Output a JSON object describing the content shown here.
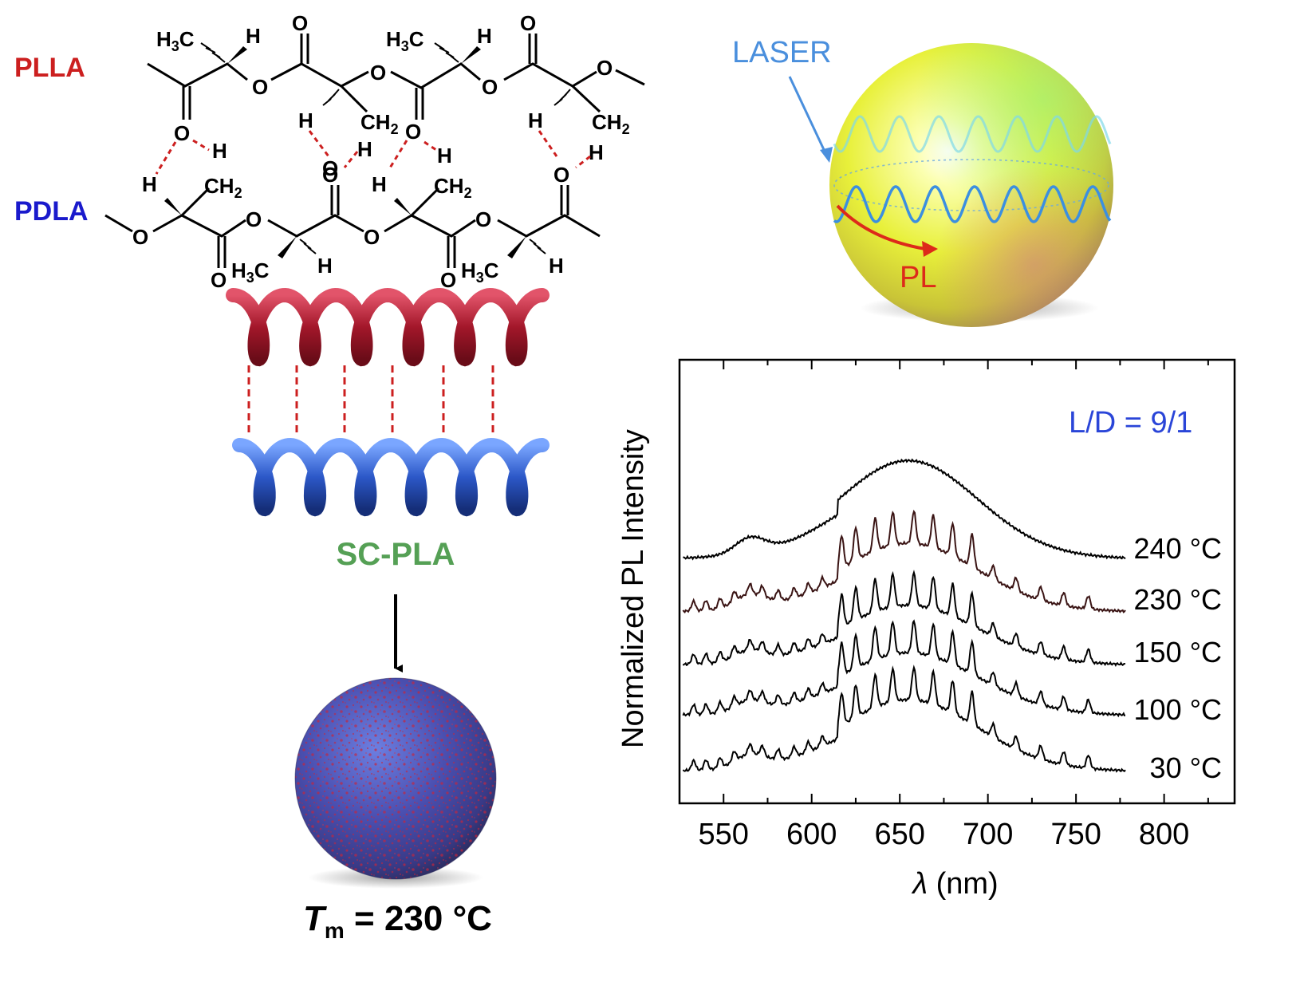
{
  "labels": {
    "plla": "PLLA",
    "pdla": "PDLA",
    "scpla": "SC-PLA",
    "laser": "LASER",
    "pl": "PL",
    "tm_symbol": "T",
    "tm_sub": "m",
    "tm_value": " = 230 °C"
  },
  "chem": {
    "o": "O",
    "h": "H",
    "ch3_c": "C",
    "ch3_h": "H",
    "ch3_3": "3",
    "ch2_c": "CH",
    "ch2_2": "2"
  },
  "colors": {
    "plla": "#cc1f1f",
    "pdla": "#1a1acc",
    "scpla": "#55a055",
    "laser": "#4a8fdd",
    "pl_arrow": "#dd2a1a",
    "ld_text": "#2a45d8",
    "hbond": "#cc1f1f"
  },
  "chart_data": {
    "type": "line",
    "xlabel_symbol": "λ",
    "xlabel_unit": " (nm)",
    "ylabel": "Normalized PL Intensity",
    "annotation": "L/D = 9/1",
    "xlim": [
      525,
      840
    ],
    "x_ticks": [
      550,
      600,
      650,
      700,
      750,
      800
    ],
    "grid": false,
    "series": [
      {
        "name": "240 °C",
        "color": "#000000",
        "offset": 4.0,
        "base": 0.62,
        "broad_amp": 1.6,
        "bump_amp": 0.35,
        "modes": 0.0,
        "x_end": 778
      },
      {
        "name": "230 °C",
        "color": "#3a1414",
        "offset": 3.0,
        "base": 0.55,
        "broad_amp": 1.1,
        "bump_amp": 0.3,
        "modes": 1.0,
        "x_end": 778
      },
      {
        "name": "150 °C",
        "color": "#000000",
        "offset": 2.0,
        "base": 0.4,
        "broad_amp": 0.95,
        "bump_amp": 0.25,
        "modes": 1.0,
        "x_end": 778
      },
      {
        "name": "100 °C",
        "color": "#000000",
        "offset": 1.05,
        "base": 0.45,
        "broad_amp": 1.0,
        "bump_amp": 0.25,
        "modes": 1.0,
        "x_end": 778
      },
      {
        "name": "30 °C",
        "color": "#000000",
        "offset": 0.0,
        "base": 0.38,
        "broad_amp": 1.15,
        "bump_amp": 0.28,
        "modes": 1.0,
        "x_end": 778
      }
    ],
    "mode_positions": [
      533,
      540,
      548,
      556,
      565,
      572,
      581,
      590,
      598,
      606,
      617,
      625,
      636,
      646,
      658,
      669,
      680,
      691,
      703,
      716,
      730,
      743,
      757
    ]
  }
}
